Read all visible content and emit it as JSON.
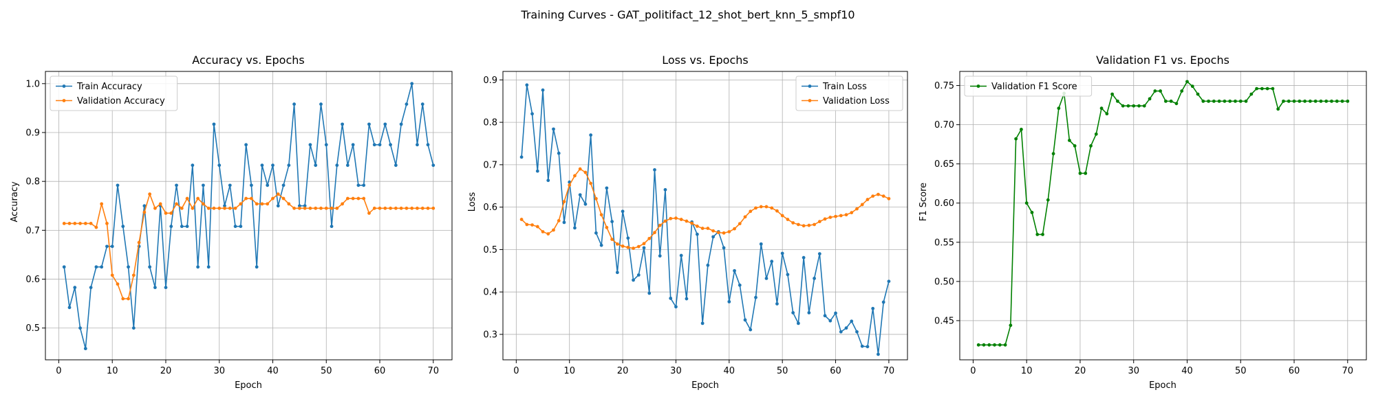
{
  "suptitle": "Training Curves - GAT_politifact_12_shot_bert_knn_5_smpf10",
  "chart_data": [
    {
      "type": "line",
      "title": "Accuracy vs. Epochs",
      "xlabel": "Epoch",
      "ylabel": "Accuracy",
      "xlim": [
        -2.5,
        73.5
      ],
      "ylim": [
        0.435,
        1.025
      ],
      "xticks": [
        0,
        10,
        20,
        30,
        40,
        50,
        60,
        70
      ],
      "yticks": [
        0.5,
        0.6,
        0.7,
        0.8,
        0.9,
        1.0
      ],
      "ytick_labels": [
        "0.5",
        "0.6",
        "0.7",
        "0.8",
        "0.9",
        "1.0"
      ],
      "grid": true,
      "legend_position": "upper-left",
      "x": [
        1,
        2,
        3,
        4,
        5,
        6,
        7,
        8,
        9,
        10,
        11,
        12,
        13,
        14,
        15,
        16,
        17,
        18,
        19,
        20,
        21,
        22,
        23,
        24,
        25,
        26,
        27,
        28,
        29,
        30,
        31,
        32,
        33,
        34,
        35,
        36,
        37,
        38,
        39,
        40,
        41,
        42,
        43,
        44,
        45,
        46,
        47,
        48,
        49,
        50,
        51,
        52,
        53,
        54,
        55,
        56,
        57,
        58,
        59,
        60,
        61,
        62,
        63,
        64,
        65,
        66,
        67,
        68,
        69,
        70
      ],
      "series": [
        {
          "name": "Train Accuracy",
          "color": "#1f77b4",
          "values": [
            0.625,
            0.542,
            0.583,
            0.5,
            0.458,
            0.583,
            0.625,
            0.625,
            0.667,
            0.667,
            0.792,
            0.708,
            0.625,
            0.5,
            0.667,
            0.75,
            0.625,
            0.583,
            0.75,
            0.583,
            0.708,
            0.792,
            0.708,
            0.708,
            0.833,
            0.625,
            0.792,
            0.625,
            0.917,
            0.833,
            0.75,
            0.792,
            0.708,
            0.708,
            0.875,
            0.792,
            0.625,
            0.833,
            0.792,
            0.833,
            0.75,
            0.792,
            0.833,
            0.958,
            0.75,
            0.75,
            0.875,
            0.833,
            0.958,
            0.875,
            0.708,
            0.833,
            0.917,
            0.833,
            0.875,
            0.792,
            0.792,
            0.917,
            0.875,
            0.875,
            0.917,
            0.875,
            0.833,
            0.917,
            0.958,
            1.0,
            0.875,
            0.958,
            0.875,
            0.833
          ]
        },
        {
          "name": "Validation Accuracy",
          "color": "#ff7f0e",
          "values": [
            0.714,
            0.714,
            0.714,
            0.714,
            0.714,
            0.714,
            0.706,
            0.754,
            0.714,
            0.608,
            0.59,
            0.56,
            0.56,
            0.608,
            0.675,
            0.737,
            0.774,
            0.745,
            0.754,
            0.735,
            0.735,
            0.754,
            0.745,
            0.765,
            0.745,
            0.765,
            0.754,
            0.745,
            0.745,
            0.745,
            0.745,
            0.745,
            0.745,
            0.754,
            0.765,
            0.765,
            0.754,
            0.754,
            0.754,
            0.765,
            0.774,
            0.765,
            0.754,
            0.745,
            0.745,
            0.745,
            0.745,
            0.745,
            0.745,
            0.745,
            0.745,
            0.745,
            0.754,
            0.765,
            0.765,
            0.765,
            0.765,
            0.735,
            0.745,
            0.745,
            0.745,
            0.745,
            0.745,
            0.745,
            0.745,
            0.745,
            0.745,
            0.745,
            0.745,
            0.745
          ]
        }
      ]
    },
    {
      "type": "line",
      "title": "Loss vs. Epochs",
      "xlabel": "Epoch",
      "ylabel": "Loss",
      "xlim": [
        -2.5,
        73.5
      ],
      "ylim": [
        0.24,
        0.92
      ],
      "xticks": [
        0,
        10,
        20,
        30,
        40,
        50,
        60,
        70
      ],
      "yticks": [
        0.3,
        0.4,
        0.5,
        0.6,
        0.7,
        0.8,
        0.9
      ],
      "ytick_labels": [
        "0.3",
        "0.4",
        "0.5",
        "0.6",
        "0.7",
        "0.8",
        "0.9"
      ],
      "grid": true,
      "legend_position": "upper-right",
      "x": [
        1,
        2,
        3,
        4,
        5,
        6,
        7,
        8,
        9,
        10,
        11,
        12,
        13,
        14,
        15,
        16,
        17,
        18,
        19,
        20,
        21,
        22,
        23,
        24,
        25,
        26,
        27,
        28,
        29,
        30,
        31,
        32,
        33,
        34,
        35,
        36,
        37,
        38,
        39,
        40,
        41,
        42,
        43,
        44,
        45,
        46,
        47,
        48,
        49,
        50,
        51,
        52,
        53,
        54,
        55,
        56,
        57,
        58,
        59,
        60,
        61,
        62,
        63,
        64,
        65,
        66,
        67,
        68,
        69,
        70
      ],
      "series": [
        {
          "name": "Train Loss",
          "color": "#1f77b4",
          "values": [
            0.718,
            0.888,
            0.82,
            0.685,
            0.876,
            0.663,
            0.784,
            0.727,
            0.564,
            0.659,
            0.551,
            0.629,
            0.607,
            0.77,
            0.539,
            0.51,
            0.645,
            0.566,
            0.446,
            0.59,
            0.527,
            0.428,
            0.44,
            0.504,
            0.397,
            0.688,
            0.485,
            0.641,
            0.385,
            0.365,
            0.486,
            0.384,
            0.565,
            0.536,
            0.326,
            0.463,
            0.53,
            0.542,
            0.504,
            0.377,
            0.45,
            0.416,
            0.334,
            0.311,
            0.387,
            0.513,
            0.432,
            0.472,
            0.372,
            0.491,
            0.441,
            0.351,
            0.326,
            0.481,
            0.351,
            0.432,
            0.49,
            0.344,
            0.332,
            0.35,
            0.306,
            0.315,
            0.331,
            0.306,
            0.272,
            0.271,
            0.361,
            0.253,
            0.376,
            0.425
          ]
        },
        {
          "name": "Validation Loss",
          "color": "#ff7f0e",
          "values": [
            0.571,
            0.559,
            0.558,
            0.554,
            0.542,
            0.537,
            0.546,
            0.568,
            0.613,
            0.652,
            0.674,
            0.69,
            0.682,
            0.656,
            0.62,
            0.582,
            0.552,
            0.524,
            0.513,
            0.508,
            0.505,
            0.503,
            0.507,
            0.514,
            0.526,
            0.54,
            0.557,
            0.567,
            0.573,
            0.574,
            0.571,
            0.567,
            0.562,
            0.555,
            0.55,
            0.55,
            0.544,
            0.54,
            0.539,
            0.542,
            0.549,
            0.561,
            0.577,
            0.59,
            0.598,
            0.601,
            0.601,
            0.598,
            0.591,
            0.58,
            0.571,
            0.563,
            0.559,
            0.556,
            0.557,
            0.559,
            0.566,
            0.572,
            0.576,
            0.578,
            0.58,
            0.582,
            0.587,
            0.596,
            0.606,
            0.618,
            0.626,
            0.63,
            0.626,
            0.62
          ]
        }
      ]
    },
    {
      "type": "line",
      "title": "Validation F1 vs. Epochs",
      "xlabel": "Epoch",
      "ylabel": "F1 Score",
      "xlim": [
        -2.5,
        73.5
      ],
      "ylim": [
        0.4,
        0.768
      ],
      "xticks": [
        0,
        10,
        20,
        30,
        40,
        50,
        60,
        70
      ],
      "yticks": [
        0.45,
        0.5,
        0.55,
        0.6,
        0.65,
        0.7,
        0.75
      ],
      "ytick_labels": [
        "0.45",
        "0.50",
        "0.55",
        "0.60",
        "0.65",
        "0.70",
        "0.75"
      ],
      "grid": true,
      "legend_position": "upper-left",
      "x": [
        1,
        2,
        3,
        4,
        5,
        6,
        7,
        8,
        9,
        10,
        11,
        12,
        13,
        14,
        15,
        16,
        17,
        18,
        19,
        20,
        21,
        22,
        23,
        24,
        25,
        26,
        27,
        28,
        29,
        30,
        31,
        32,
        33,
        34,
        35,
        36,
        37,
        38,
        39,
        40,
        41,
        42,
        43,
        44,
        45,
        46,
        47,
        48,
        49,
        50,
        51,
        52,
        53,
        54,
        55,
        56,
        57,
        58,
        59,
        60,
        61,
        62,
        63,
        64,
        65,
        66,
        67,
        68,
        69,
        70
      ],
      "series": [
        {
          "name": "Validation F1 Score",
          "color": "#008000",
          "values": [
            0.419,
            0.419,
            0.419,
            0.419,
            0.419,
            0.419,
            0.444,
            0.682,
            0.694,
            0.6,
            0.588,
            0.56,
            0.56,
            0.604,
            0.663,
            0.721,
            0.74,
            0.68,
            0.673,
            0.638,
            0.638,
            0.673,
            0.688,
            0.721,
            0.714,
            0.739,
            0.73,
            0.724,
            0.724,
            0.724,
            0.724,
            0.724,
            0.733,
            0.743,
            0.743,
            0.73,
            0.73,
            0.727,
            0.743,
            0.755,
            0.749,
            0.739,
            0.73,
            0.73,
            0.73,
            0.73,
            0.73,
            0.73,
            0.73,
            0.73,
            0.73,
            0.739,
            0.746,
            0.746,
            0.746,
            0.746,
            0.72,
            0.73,
            0.73,
            0.73,
            0.73,
            0.73,
            0.73,
            0.73,
            0.73,
            0.73,
            0.73,
            0.73,
            0.73,
            0.73
          ]
        }
      ]
    }
  ]
}
